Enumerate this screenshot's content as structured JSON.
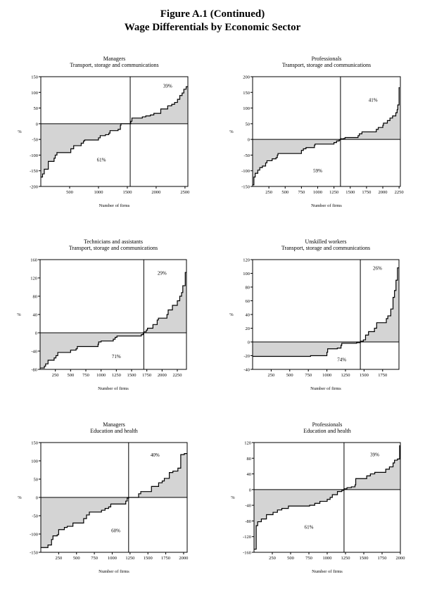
{
  "figure": {
    "title": "Figure A.1 (Continued)",
    "subtitle": "Wage Differentials by Economic Sector"
  },
  "colors": {
    "fill": "#d4d4d4",
    "line": "#000000"
  },
  "chart_data": [
    {
      "type": "area",
      "title": "Managers",
      "subtitle": "Transport, storage and communications",
      "xlabel": "Number of firms",
      "ylabel": "%",
      "xlim": [
        0,
        2550
      ],
      "ylim": [
        -200,
        150
      ],
      "xticks": [
        500,
        1000,
        1500,
        2000,
        2500
      ],
      "yticks": [
        -200,
        -150,
        -100,
        -50,
        0,
        50,
        100,
        150
      ],
      "split": 1550,
      "neg_label": "61%",
      "pos_label": "39%",
      "steps": [
        [
          0,
          -170
        ],
        [
          30,
          -160
        ],
        [
          60,
          -145
        ],
        [
          130,
          -120
        ],
        [
          230,
          -110
        ],
        [
          250,
          -100
        ],
        [
          280,
          -92
        ],
        [
          520,
          -80
        ],
        [
          570,
          -70
        ],
        [
          700,
          -62
        ],
        [
          740,
          -55
        ],
        [
          760,
          -52
        ],
        [
          1000,
          -45
        ],
        [
          1030,
          -38
        ],
        [
          1120,
          -35
        ],
        [
          1180,
          -30
        ],
        [
          1200,
          -22
        ],
        [
          1340,
          -18
        ],
        [
          1380,
          -5
        ],
        [
          1390,
          0
        ],
        [
          1550,
          0
        ],
        [
          1560,
          8
        ],
        [
          1580,
          18
        ],
        [
          1760,
          22
        ],
        [
          1820,
          25
        ],
        [
          1900,
          28
        ],
        [
          1960,
          33
        ],
        [
          2080,
          47
        ],
        [
          2200,
          57
        ],
        [
          2270,
          62
        ],
        [
          2320,
          68
        ],
        [
          2370,
          78
        ],
        [
          2410,
          90
        ],
        [
          2450,
          98
        ],
        [
          2480,
          110
        ],
        [
          2520,
          118
        ],
        [
          2550,
          118
        ]
      ]
    },
    {
      "type": "area",
      "title": "Professionals",
      "subtitle": "Transport, storage and communications",
      "xlabel": "Number of firms",
      "ylabel": "%",
      "xlim": [
        0,
        2270
      ],
      "ylim": [
        -150,
        200
      ],
      "xticks": [
        250,
        500,
        750,
        1000,
        1250,
        1500,
        1750,
        2000,
        2250
      ],
      "yticks": [
        -150,
        -100,
        -50,
        0,
        50,
        100,
        150,
        200
      ],
      "split": 1350,
      "neg_label": "59%",
      "pos_label": "41%",
      "steps": [
        [
          0,
          -145
        ],
        [
          20,
          -120
        ],
        [
          40,
          -108
        ],
        [
          80,
          -98
        ],
        [
          110,
          -90
        ],
        [
          150,
          -85
        ],
        [
          200,
          -75
        ],
        [
          220,
          -68
        ],
        [
          300,
          -62
        ],
        [
          360,
          -58
        ],
        [
          380,
          -50
        ],
        [
          390,
          -45
        ],
        [
          750,
          -35
        ],
        [
          780,
          -30
        ],
        [
          820,
          -26
        ],
        [
          950,
          -18
        ],
        [
          960,
          -15
        ],
        [
          1250,
          -10
        ],
        [
          1290,
          -5
        ],
        [
          1330,
          -2
        ],
        [
          1350,
          2
        ],
        [
          1400,
          3
        ],
        [
          1420,
          6
        ],
        [
          1620,
          12
        ],
        [
          1640,
          18
        ],
        [
          1680,
          24
        ],
        [
          1900,
          32
        ],
        [
          1930,
          38
        ],
        [
          2000,
          45
        ],
        [
          2010,
          52
        ],
        [
          2070,
          60
        ],
        [
          2110,
          68
        ],
        [
          2150,
          75
        ],
        [
          2200,
          85
        ],
        [
          2220,
          95
        ],
        [
          2230,
          110
        ],
        [
          2250,
          165
        ],
        [
          2260,
          165
        ]
      ]
    },
    {
      "type": "area",
      "title": "Technicians and assistants",
      "subtitle": "Transport, storage and communications",
      "xlabel": "Number of firms",
      "ylabel": "%",
      "xlim": [
        0,
        2400
      ],
      "ylim": [
        -80,
        160
      ],
      "xticks": [
        250,
        500,
        750,
        1000,
        1250,
        1500,
        1750,
        2000,
        2250
      ],
      "yticks": [
        -80,
        -40,
        0,
        40,
        80,
        120,
        160
      ],
      "split": 1700,
      "neg_label": "71%",
      "pos_label": "29%",
      "steps": [
        [
          0,
          -77
        ],
        [
          70,
          -73
        ],
        [
          90,
          -68
        ],
        [
          130,
          -60
        ],
        [
          230,
          -55
        ],
        [
          260,
          -50
        ],
        [
          290,
          -43
        ],
        [
          500,
          -38
        ],
        [
          590,
          -35
        ],
        [
          610,
          -30
        ],
        [
          950,
          -25
        ],
        [
          960,
          -20
        ],
        [
          1000,
          -18
        ],
        [
          1200,
          -14
        ],
        [
          1230,
          -10
        ],
        [
          1260,
          -7
        ],
        [
          1660,
          -4
        ],
        [
          1690,
          -1
        ],
        [
          1700,
          2
        ],
        [
          1740,
          6
        ],
        [
          1760,
          10
        ],
        [
          1850,
          18
        ],
        [
          1920,
          28
        ],
        [
          1940,
          32
        ],
        [
          2080,
          40
        ],
        [
          2100,
          50
        ],
        [
          2170,
          60
        ],
        [
          2250,
          70
        ],
        [
          2290,
          80
        ],
        [
          2320,
          88
        ],
        [
          2340,
          103
        ],
        [
          2380,
          132
        ],
        [
          2400,
          132
        ]
      ]
    },
    {
      "type": "area",
      "title": "Unskilled workers",
      "subtitle": "Transport, storage and communications",
      "xlabel": "Number of firms",
      "ylabel": "%",
      "xlim": [
        0,
        1970
      ],
      "ylim": [
        -40,
        120
      ],
      "xticks": [
        250,
        500,
        750,
        1000,
        1250,
        1500,
        1750
      ],
      "yticks": [
        -40,
        -20,
        0,
        20,
        40,
        60,
        80,
        100,
        120
      ],
      "split": 1450,
      "neg_label": "74%",
      "pos_label": "26%",
      "steps": [
        [
          0,
          -21
        ],
        [
          780,
          -20
        ],
        [
          1000,
          -15
        ],
        [
          1010,
          -10
        ],
        [
          1140,
          -9
        ],
        [
          1190,
          -5
        ],
        [
          1200,
          -2
        ],
        [
          1400,
          -1
        ],
        [
          1450,
          1
        ],
        [
          1490,
          3
        ],
        [
          1520,
          10
        ],
        [
          1560,
          15
        ],
        [
          1640,
          20
        ],
        [
          1670,
          28
        ],
        [
          1800,
          34
        ],
        [
          1820,
          38
        ],
        [
          1860,
          48
        ],
        [
          1890,
          65
        ],
        [
          1910,
          75
        ],
        [
          1930,
          90
        ],
        [
          1950,
          108
        ],
        [
          1970,
          108
        ]
      ]
    },
    {
      "type": "area",
      "title": "Managers",
      "subtitle": "Education and health",
      "xlabel": "Number of firms",
      "ylabel": "%",
      "xlim": [
        0,
        2050
      ],
      "ylim": [
        -150,
        150
      ],
      "xticks": [
        250,
        500,
        750,
        1000,
        1250,
        1500,
        1750,
        2000
      ],
      "yticks": [
        -150,
        -100,
        -50,
        0,
        50,
        100,
        150
      ],
      "split": 1230,
      "neg_label": "60%",
      "pos_label": "40%",
      "steps": [
        [
          0,
          -137
        ],
        [
          100,
          -130
        ],
        [
          150,
          -115
        ],
        [
          170,
          -105
        ],
        [
          230,
          -102
        ],
        [
          250,
          -88
        ],
        [
          330,
          -82
        ],
        [
          370,
          -79
        ],
        [
          450,
          -70
        ],
        [
          600,
          -58
        ],
        [
          640,
          -48
        ],
        [
          680,
          -40
        ],
        [
          850,
          -35
        ],
        [
          900,
          -30
        ],
        [
          950,
          -26
        ],
        [
          980,
          -18
        ],
        [
          1190,
          -10
        ],
        [
          1210,
          -2
        ],
        [
          1230,
          0
        ],
        [
          1370,
          10
        ],
        [
          1400,
          16
        ],
        [
          1550,
          30
        ],
        [
          1650,
          40
        ],
        [
          1700,
          45
        ],
        [
          1730,
          52
        ],
        [
          1800,
          68
        ],
        [
          1850,
          72
        ],
        [
          1920,
          80
        ],
        [
          1960,
          117
        ],
        [
          2010,
          120
        ],
        [
          2050,
          120
        ]
      ]
    },
    {
      "type": "area",
      "title": "Professionals",
      "subtitle": "Education and health",
      "xlabel": "Number of firms",
      "ylabel": "%",
      "xlim": [
        0,
        2000
      ],
      "ylim": [
        -160,
        120
      ],
      "xticks": [
        250,
        500,
        750,
        1000,
        1250,
        1500,
        1750,
        2000
      ],
      "yticks": [
        -160,
        -120,
        -80,
        -40,
        0,
        40,
        80,
        120
      ],
      "split": 1230,
      "neg_label": "61%",
      "pos_label": "39%",
      "steps": [
        [
          0,
          -152
        ],
        [
          30,
          -92
        ],
        [
          50,
          -82
        ],
        [
          100,
          -75
        ],
        [
          170,
          -64
        ],
        [
          260,
          -58
        ],
        [
          320,
          -52
        ],
        [
          380,
          -48
        ],
        [
          470,
          -42
        ],
        [
          760,
          -40
        ],
        [
          830,
          -35
        ],
        [
          900,
          -30
        ],
        [
          1000,
          -25
        ],
        [
          1040,
          -20
        ],
        [
          1070,
          -13
        ],
        [
          1140,
          -5
        ],
        [
          1200,
          -2
        ],
        [
          1230,
          2
        ],
        [
          1270,
          5
        ],
        [
          1330,
          7
        ],
        [
          1380,
          12
        ],
        [
          1390,
          28
        ],
        [
          1540,
          35
        ],
        [
          1590,
          40
        ],
        [
          1650,
          44
        ],
        [
          1800,
          52
        ],
        [
          1850,
          58
        ],
        [
          1900,
          68
        ],
        [
          1920,
          75
        ],
        [
          1960,
          78
        ],
        [
          1990,
          112
        ],
        [
          2000,
          112
        ]
      ]
    }
  ]
}
